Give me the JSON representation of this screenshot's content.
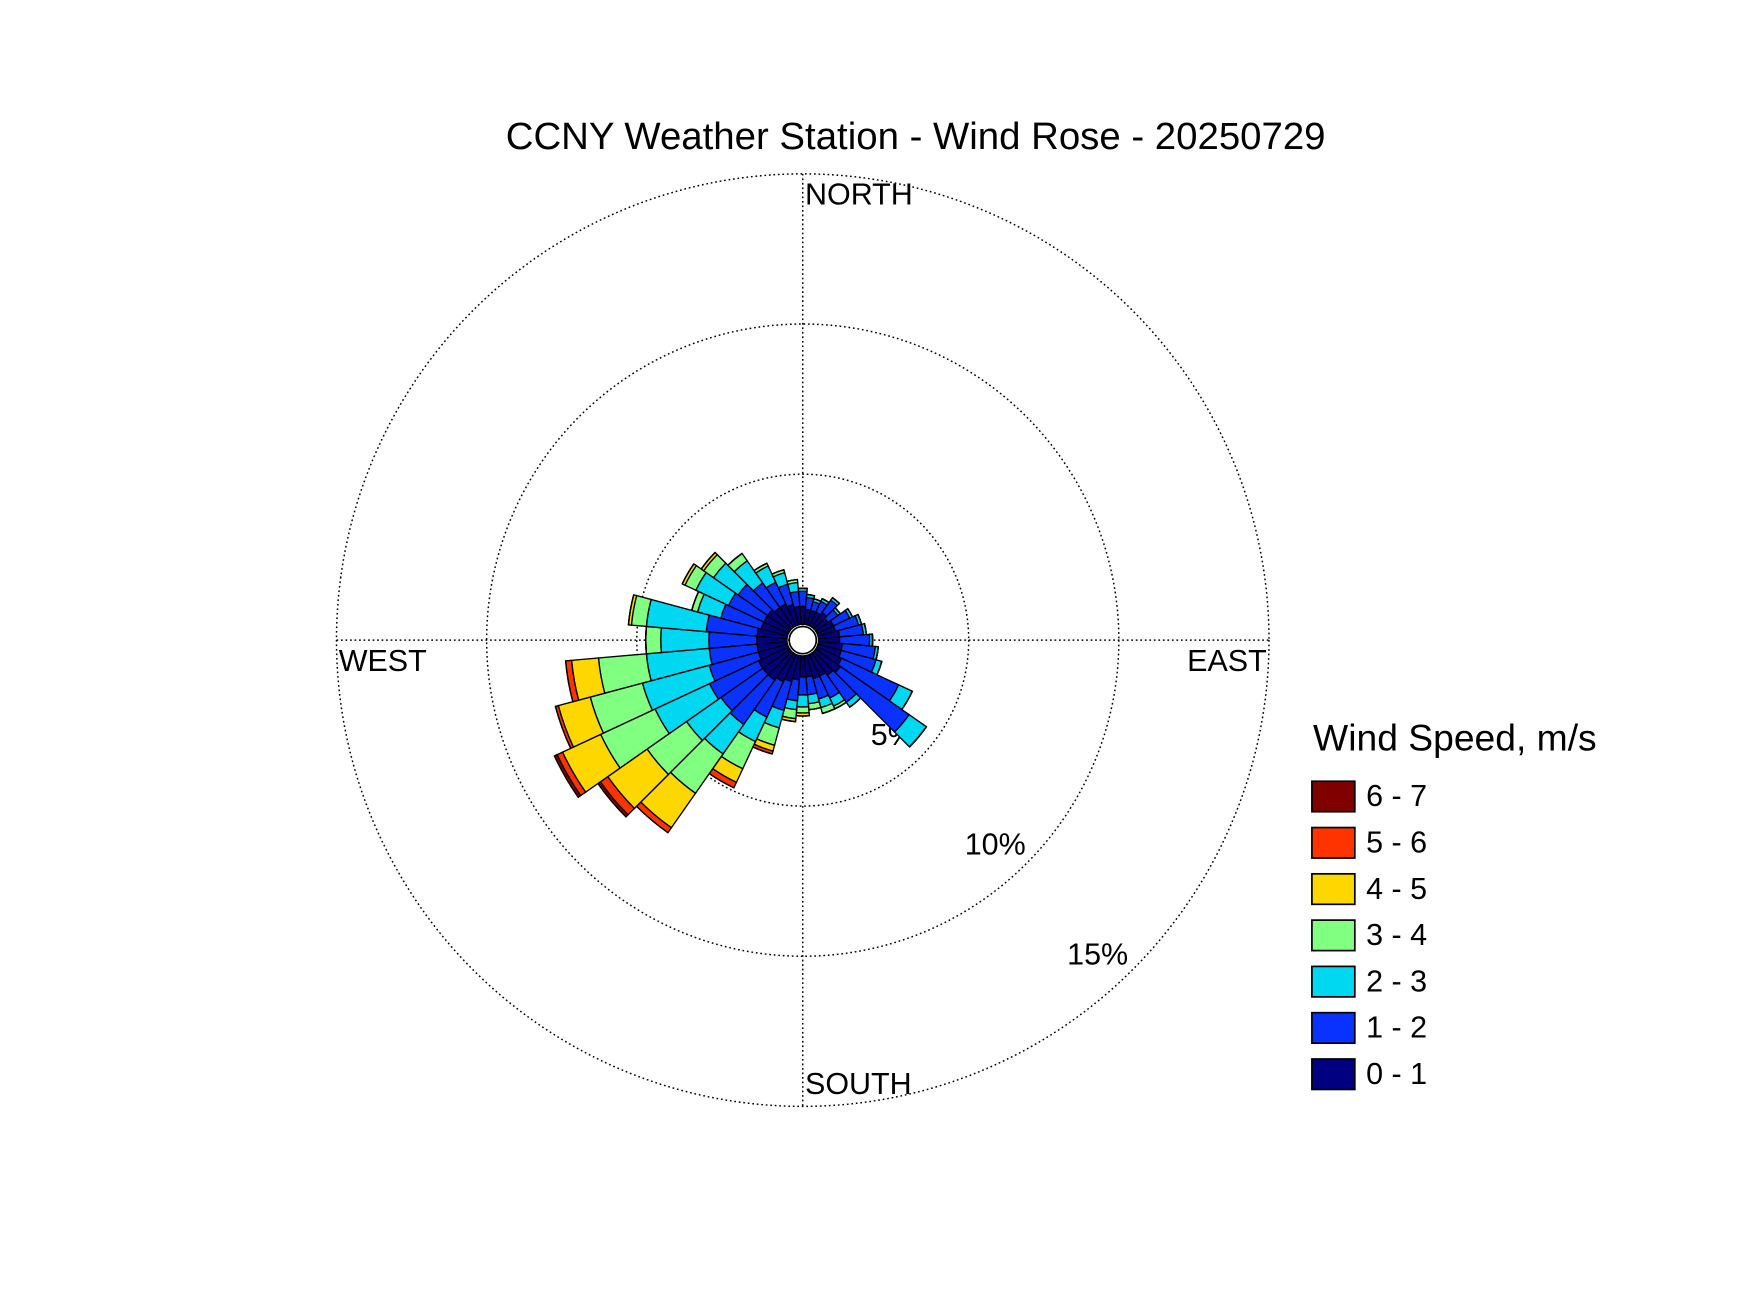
{
  "chart_data": {
    "type": "windrose",
    "title": "CCNY Weather Station - Wind Rose - 20250729",
    "direction_labels": [
      "NORTH",
      "EAST",
      "SOUTH",
      "WEST"
    ],
    "legend_title": "Wind Speed, m/s",
    "rlim": [
      0,
      15
    ],
    "rticks": [
      {
        "value": 5,
        "label": "5%"
      },
      {
        "value": 10,
        "label": "10%"
      },
      {
        "value": 15,
        "label": "15%"
      }
    ],
    "x": [
      0,
      10,
      20,
      30,
      40,
      50,
      60,
      70,
      80,
      90,
      100,
      110,
      120,
      130,
      140,
      150,
      160,
      170,
      180,
      190,
      200,
      210,
      220,
      230,
      240,
      250,
      260,
      270,
      280,
      290,
      300,
      310,
      320,
      330,
      340,
      350
    ],
    "series": [
      {
        "name": "0 - 1",
        "color": "#000080",
        "values": [
          0.6,
          0.5,
          0.5,
          0.5,
          0.6,
          0.5,
          0.6,
          0.6,
          0.7,
          0.7,
          0.8,
          0.8,
          0.9,
          1.0,
          0.9,
          0.8,
          0.8,
          0.7,
          0.7,
          0.8,
          0.9,
          1.0,
          1.1,
          1.1,
          1.1,
          1.0,
          1.0,
          1.0,
          1.0,
          0.9,
          0.9,
          0.9,
          0.8,
          0.8,
          0.7,
          0.6
        ]
      },
      {
        "name": "1 - 2",
        "color": "#0a32ff",
        "values": [
          0.5,
          0.4,
          0.3,
          0.4,
          0.5,
          0.4,
          0.6,
          0.8,
          0.8,
          1.0,
          1.1,
          1.2,
          2.1,
          2.8,
          1.1,
          0.8,
          0.7,
          0.6,
          0.6,
          0.7,
          1.0,
          1.3,
          1.8,
          1.7,
          1.8,
          1.7,
          1.6,
          1.6,
          1.7,
          1.4,
          1.3,
          1.2,
          1.0,
          0.8,
          0.7,
          0.5
        ]
      },
      {
        "name": "2 - 3",
        "color": "#00d8f2",
        "values": [
          0.1,
          0.1,
          0.1,
          0.1,
          0.1,
          0.1,
          0.1,
          0.1,
          0.1,
          0.1,
          0.1,
          0.2,
          0.5,
          0.7,
          0.2,
          0.3,
          0.3,
          0.3,
          0.4,
          0.3,
          0.6,
          0.9,
          1.2,
          1.4,
          2.0,
          2.3,
          2.1,
          1.6,
          2.0,
          0.8,
          1.2,
          1.0,
          0.9,
          0.6,
          0.4,
          0.3
        ]
      },
      {
        "name": "3 - 4",
        "color": "#80ff80",
        "values": [
          0,
          0,
          0,
          0,
          0,
          0,
          0,
          0,
          0,
          0,
          0,
          0,
          0,
          0,
          0,
          0.1,
          0.2,
          0.2,
          0.2,
          0.3,
          0.6,
          1.0,
          1.6,
          1.6,
          2.0,
          1.8,
          1.6,
          0.5,
          0.5,
          0.2,
          0.4,
          0.4,
          0.3,
          0.1,
          0.1,
          0.1
        ]
      },
      {
        "name": "4 - 5",
        "color": "#ffd700",
        "values": [
          0,
          0,
          0,
          0,
          0,
          0,
          0,
          0,
          0,
          0,
          0,
          0,
          0,
          0,
          0,
          0,
          0,
          0,
          0.1,
          0.1,
          0.2,
          0.5,
          1.4,
          1.6,
          1.4,
          1.1,
          0.9,
          0,
          0.1,
          0,
          0.1,
          0.1,
          0,
          0,
          0,
          0
        ]
      },
      {
        "name": "5 - 6",
        "color": "#ff3300",
        "values": [
          0,
          0,
          0,
          0,
          0,
          0,
          0,
          0,
          0,
          0,
          0,
          0,
          0,
          0,
          0,
          0,
          0,
          0,
          0,
          0,
          0.1,
          0.2,
          0.2,
          0.3,
          0.2,
          0.1,
          0.2,
          0,
          0,
          0,
          0,
          0,
          0,
          0,
          0,
          0
        ]
      },
      {
        "name": "6 - 7",
        "color": "#800000",
        "values": [
          0,
          0,
          0,
          0,
          0,
          0,
          0,
          0,
          0,
          0,
          0,
          0,
          0,
          0,
          0,
          0,
          0,
          0,
          0,
          0,
          0,
          0,
          0,
          0.1,
          0.1,
          0,
          0,
          0,
          0,
          0,
          0,
          0,
          0,
          0,
          0,
          0
        ]
      }
    ]
  }
}
